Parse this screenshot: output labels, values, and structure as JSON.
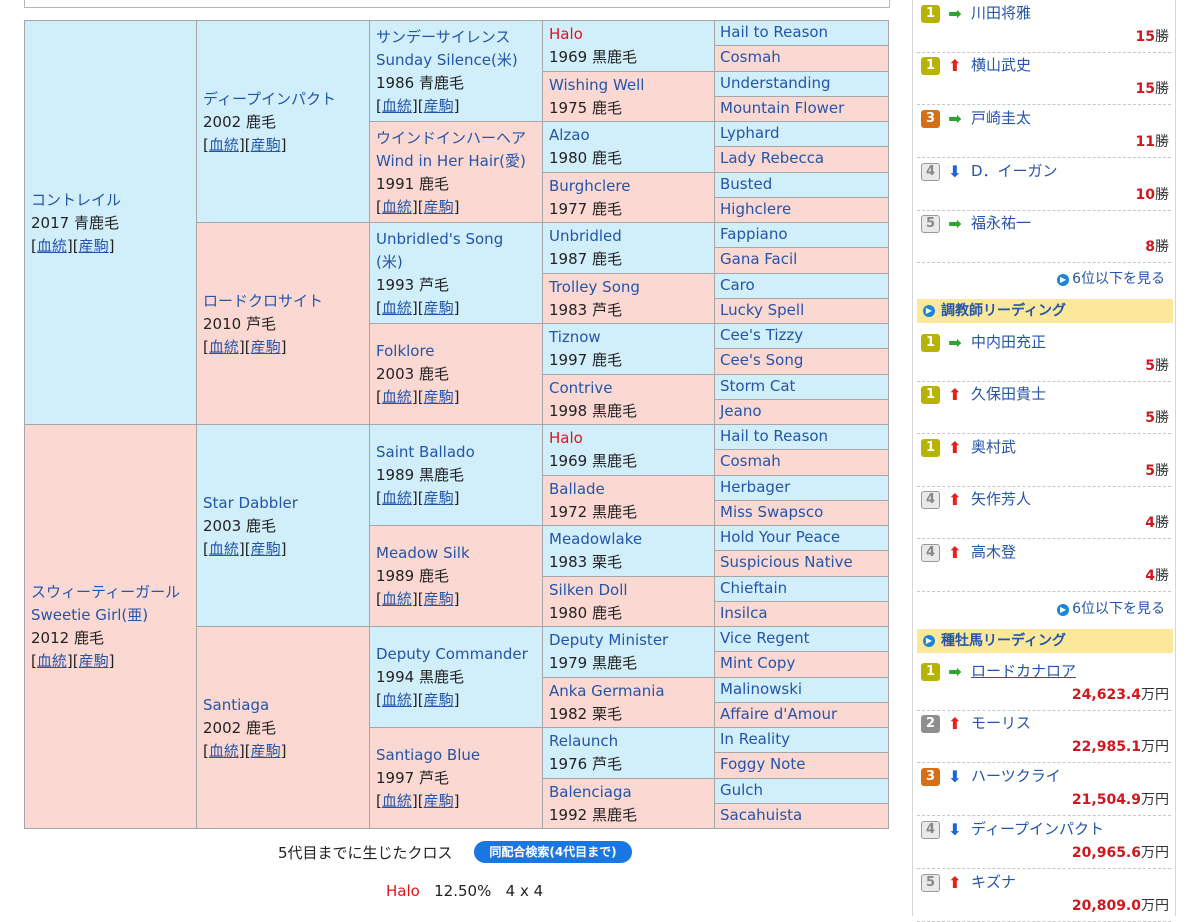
{
  "links": {
    "blood": "血統",
    "offspring": "産駒"
  },
  "pedigree": {
    "gen1": [
      {
        "name": "コントレイル",
        "info": "2017 青鹿毛"
      },
      {
        "name": "スウィーティーガール",
        "name2": "Sweetie Girl(亜)",
        "info": "2012 鹿毛"
      }
    ],
    "gen2": [
      {
        "name": "ディープインパクト",
        "info": "2002 鹿毛"
      },
      {
        "name": "ロードクロサイト",
        "info": "2010 芦毛"
      },
      {
        "name": "Star Dabbler",
        "info": "2003 鹿毛"
      },
      {
        "name": "Santiaga",
        "info": "2002 鹿毛"
      }
    ],
    "gen3": [
      {
        "name": "サンデーサイレンス",
        "name2": "Sunday Silence(米)",
        "info": "1986 青鹿毛"
      },
      {
        "name": "ウインドインハーヘア",
        "name2": "Wind in Her Hair(愛)",
        "info": "1991 鹿毛"
      },
      {
        "name": "Unbridled's Song",
        "name2": "(米)",
        "info": "1993 芦毛"
      },
      {
        "name": "Folklore",
        "info": "2003 鹿毛"
      },
      {
        "name": "Saint Ballado",
        "info": "1989 黒鹿毛"
      },
      {
        "name": "Meadow Silk",
        "info": "1989 鹿毛"
      },
      {
        "name": "Deputy Commander",
        "info": "1994 黒鹿毛"
      },
      {
        "name": "Santiago Blue",
        "info": "1997 芦毛"
      }
    ],
    "gen4": [
      {
        "name": "Halo",
        "info": "1969 黒鹿毛"
      },
      {
        "name": "Wishing Well",
        "info": "1975 鹿毛"
      },
      {
        "name": "Alzao",
        "info": "1980 鹿毛"
      },
      {
        "name": "Burghclere",
        "info": "1977 鹿毛"
      },
      {
        "name": "Unbridled",
        "info": "1987 鹿毛"
      },
      {
        "name": "Trolley Song",
        "info": "1983 芦毛"
      },
      {
        "name": "Tiznow",
        "info": "1997 鹿毛"
      },
      {
        "name": "Contrive",
        "info": "1998 黒鹿毛"
      },
      {
        "name": "Halo",
        "info": "1969 黒鹿毛"
      },
      {
        "name": "Ballade",
        "info": "1972 黒鹿毛"
      },
      {
        "name": "Meadowlake",
        "info": "1983 栗毛"
      },
      {
        "name": "Silken Doll",
        "info": "1980 鹿毛"
      },
      {
        "name": "Deputy Minister",
        "info": "1979 黒鹿毛"
      },
      {
        "name": "Anka Germania",
        "info": "1982 栗毛"
      },
      {
        "name": "Relaunch",
        "info": "1976 芦毛"
      },
      {
        "name": "Balenciaga",
        "info": "1992 黒鹿毛"
      }
    ],
    "gen5": [
      "Hail to Reason",
      "Cosmah",
      "Understanding",
      "Mountain Flower",
      "Lyphard",
      "Lady Rebecca",
      "Busted",
      "Highclere",
      "Fappiano",
      "Gana Facil",
      "Caro",
      "Lucky Spell",
      "Cee's Tizzy",
      "Cee's Song",
      "Storm Cat",
      "Jeano",
      "Hail to Reason",
      "Cosmah",
      "Herbager",
      "Miss Swapsco",
      "Hold Your Peace",
      "Suspicious Native",
      "Chieftain",
      "Insilca",
      "Vice Regent",
      "Mint Copy",
      "Malinowski",
      "Affaire d'Amour",
      "In Reality",
      "Foggy Note",
      "Gulch",
      "Sacahuista"
    ]
  },
  "cross": {
    "title": "5代目までに生じたクロス",
    "button": "同配合検索(4代目まで)",
    "horse": "Halo",
    "percent": "12.50%",
    "pattern": "4 x 4"
  },
  "sidebar": {
    "jockey_entries": [
      {
        "rank": "1",
        "trend": "same",
        "name": "川田将雅",
        "num": "15",
        "unit": "勝"
      },
      {
        "rank": "1",
        "trend": "up",
        "name": "横山武史",
        "num": "15",
        "unit": "勝"
      },
      {
        "rank": "3",
        "trend": "same",
        "name": "戸崎圭太",
        "num": "11",
        "unit": "勝"
      },
      {
        "rank": "4",
        "trend": "down",
        "name": "D．イーガン",
        "num": "10",
        "unit": "勝"
      },
      {
        "rank": "5",
        "trend": "same",
        "name": "福永祐一",
        "num": "8",
        "unit": "勝"
      }
    ],
    "jockey_more": "6位以下を見る",
    "trainer_title": "調教師リーディング",
    "trainer_entries": [
      {
        "rank": "1",
        "trend": "same",
        "name": "中内田充正",
        "num": "5",
        "unit": "勝"
      },
      {
        "rank": "1",
        "trend": "up",
        "name": "久保田貴士",
        "num": "5",
        "unit": "勝"
      },
      {
        "rank": "1",
        "trend": "up",
        "name": "奥村武",
        "num": "5",
        "unit": "勝"
      },
      {
        "rank": "4",
        "trend": "up",
        "name": "矢作芳人",
        "num": "4",
        "unit": "勝"
      },
      {
        "rank": "4",
        "trend": "up",
        "name": "高木登",
        "num": "4",
        "unit": "勝"
      }
    ],
    "trainer_more": "6位以下を見る",
    "sire_title": "種牡馬リーディング",
    "sire_entries": [
      {
        "rank": "1",
        "trend": "same",
        "name": "ロードカナロア",
        "num": "24,623.4",
        "unit": "万円"
      },
      {
        "rank": "2",
        "trend": "up",
        "name": "モーリス",
        "num": "22,985.1",
        "unit": "万円"
      },
      {
        "rank": "3",
        "trend": "down",
        "name": "ハーツクライ",
        "num": "21,504.9",
        "unit": "万円"
      },
      {
        "rank": "4",
        "trend": "down",
        "name": "ディープインパクト",
        "num": "20,965.6",
        "unit": "万円"
      },
      {
        "rank": "5",
        "trend": "up",
        "name": "キズナ",
        "num": "20,809.0",
        "unit": "万円"
      }
    ],
    "colors": {
      "header_bg": "#fbe89a",
      "value_red": "#d0171e",
      "male_bg": "#d1eefb",
      "female_bg": "#fcd8d3"
    }
  }
}
